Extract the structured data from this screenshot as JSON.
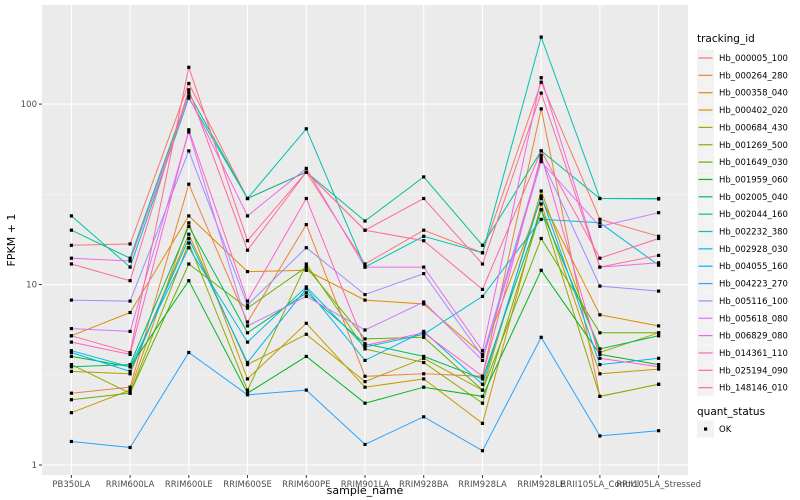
{
  "chart_data": {
    "type": "line",
    "scale_y": "log10",
    "xlabel": "sample_name",
    "ylabel": "FPKM + 1",
    "ylim": [
      1,
      300
    ],
    "y_ticks": [
      1,
      10,
      100
    ],
    "y_tick_labels": [
      "1",
      "10",
      "100"
    ],
    "categories": [
      "PB350LA",
      "RRIM600LA",
      "RRIM600LE",
      "RRIM600SE",
      "RRIM600PE",
      "RRIM901LA",
      "RRIM928BA",
      "RRIM928LA",
      "RRIM928LE",
      "RRII105LA_Control",
      "RRII105LA_Stressed"
    ],
    "category_labels": [
      "PB350LA",
      "RRIM600LA",
      "RRIM600LE",
      "RRIM600SE",
      "RRIM600PE",
      "RRIM901LA",
      "RRIM928BA",
      "RRIM928LA",
      "RRIM928LE",
      "RRII105LA_Control",
      "RRII105LA_Stressed"
    ],
    "grid": true,
    "legend_position": "right",
    "legend": {
      "title": "tracking_id"
    },
    "shape_legend": {
      "title": "quant_status",
      "items": [
        "OK"
      ]
    },
    "series": [
      {
        "name": "Hb_000005_100",
        "color": "#F8766D",
        "values": [
          16.5,
          16.8,
          130,
          30,
          42,
          13,
          20,
          15,
          132,
          23,
          18.5
        ]
      },
      {
        "name": "Hb_000264_280",
        "color": "#EC8239",
        "values": [
          2.5,
          2.7,
          36,
          6.2,
          21.5,
          3.1,
          3.2,
          3.1,
          94,
          2.4,
          2.8
        ]
      },
      {
        "name": "Hb_000358_040",
        "color": "#DB8E00",
        "values": [
          5.2,
          7.0,
          24,
          11.8,
          12.0,
          8.2,
          7.8,
          4.1,
          30,
          6.8,
          5.9
        ]
      },
      {
        "name": "Hb_000402_020",
        "color": "#C79800",
        "values": [
          1.95,
          2.6,
          22,
          3.0,
          6.1,
          2.7,
          3.0,
          1.7,
          28,
          3.2,
          3.4
        ]
      },
      {
        "name": "Hb_000684_430",
        "color": "#AEA200",
        "values": [
          3.3,
          3.2,
          19,
          3.6,
          5.3,
          2.9,
          3.9,
          2.6,
          33,
          4.2,
          5.4
        ]
      },
      {
        "name": "Hb_001269_500",
        "color": "#8FAA00",
        "values": [
          3.6,
          2.5,
          17,
          2.6,
          13,
          4.4,
          3.7,
          2.2,
          26,
          2.4,
          2.8
        ]
      },
      {
        "name": "Hb_001649_030",
        "color": "#64B200",
        "values": [
          2.3,
          2.5,
          13,
          7.4,
          12.5,
          5.0,
          5.1,
          2.6,
          18,
          5.4,
          5.4
        ]
      },
      {
        "name": "Hb_001959_060",
        "color": "#00B81B",
        "values": [
          4.0,
          3.5,
          10.5,
          2.5,
          4.0,
          2.2,
          2.7,
          2.4,
          12,
          4.1,
          3.6
        ]
      },
      {
        "name": "Hb_002005_040",
        "color": "#00BD5C",
        "values": [
          3.5,
          3.6,
          21,
          5.4,
          9.0,
          4.7,
          4.0,
          3.0,
          26,
          4.4,
          5.2
        ]
      },
      {
        "name": "Hb_002044_160",
        "color": "#00C08E",
        "values": [
          20,
          14,
          115,
          30,
          42,
          22.5,
          39.5,
          16.5,
          55,
          30,
          30
        ]
      },
      {
        "name": "Hb_002232_380",
        "color": "#00C1B2",
        "values": [
          24,
          12.5,
          108,
          30,
          73,
          12.5,
          18.5,
          15,
          235,
          30,
          29.8
        ]
      },
      {
        "name": "Hb_002928_030",
        "color": "#00BCD6",
        "values": [
          4.3,
          3.5,
          16,
          4.8,
          9.7,
          4.5,
          5.3,
          8.6,
          23,
          22,
          12.8
        ]
      },
      {
        "name": "Hb_004055_160",
        "color": "#00B2F3",
        "values": [
          4.2,
          3.3,
          18,
          3.7,
          9.5,
          3.8,
          5.5,
          2.8,
          31,
          3.6,
          3.9
        ]
      },
      {
        "name": "Hb_004223_270",
        "color": "#29A3FF",
        "values": [
          1.35,
          1.25,
          4.2,
          2.45,
          2.6,
          1.3,
          1.85,
          1.2,
          5.1,
          1.45,
          1.55
        ]
      },
      {
        "name": "Hb_005116_100",
        "color": "#9C8DFF",
        "values": [
          8.2,
          8.1,
          55,
          7.7,
          16,
          8.8,
          11.5,
          4.0,
          50,
          9.8,
          9.2
        ]
      },
      {
        "name": "Hb_005618_080",
        "color": "#D277FF",
        "values": [
          5.7,
          5.5,
          70,
          5.9,
          8.6,
          5.6,
          8.0,
          3.8,
          48,
          21,
          25
        ]
      },
      {
        "name": "Hb_006829_080",
        "color": "#F166E8",
        "values": [
          14,
          13.5,
          110,
          24,
          44,
          12.5,
          12.5,
          4.3,
          140,
          12.5,
          13.2
        ]
      },
      {
        "name": "Hb_014361_110",
        "color": "#FF61C7",
        "values": [
          4.8,
          4.1,
          72,
          8.1,
          30,
          4.6,
          5.4,
          3.1,
          52,
          3.9,
          3.5
        ]
      },
      {
        "name": "Hb_025194_090",
        "color": "#FF689E",
        "values": [
          13,
          10.5,
          120,
          15.5,
          42,
          20,
          17.5,
          9.4,
          55,
          14,
          18
        ]
      },
      {
        "name": "Hb_148146_010",
        "color": "#FF6C91",
        "values": [
          5.2,
          4.2,
          160,
          17.5,
          42,
          20,
          30,
          13,
          115,
          12.5,
          14.5
        ]
      }
    ]
  }
}
